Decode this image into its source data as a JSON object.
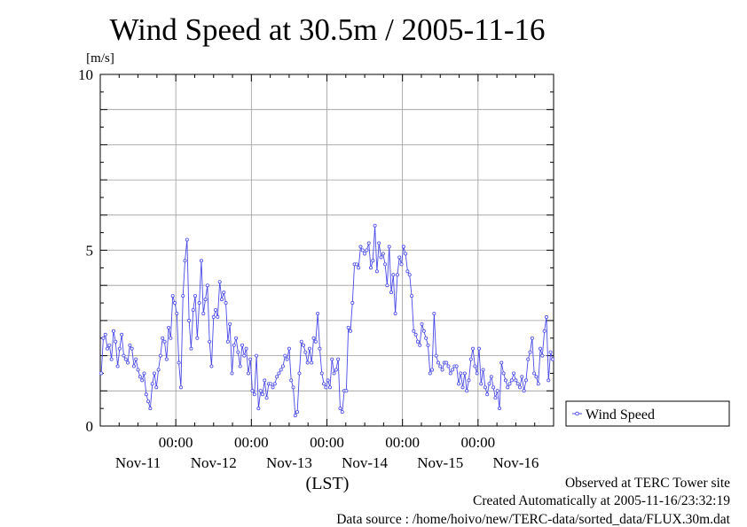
{
  "chart_data": {
    "type": "line",
    "title": "Wind Speed at 30.5m / 2005-11-16",
    "ylabel": "[m/s]",
    "xlabel": "(LST)",
    "ylim": [
      0,
      10
    ],
    "yticks": [
      "0",
      "5",
      "10"
    ],
    "xlim": [
      0,
      6
    ],
    "time_tick_label": "00:00",
    "day_labels": [
      "Nov-11",
      "Nov-12",
      "Nov-13",
      "Nov-14",
      "Nov-15",
      "Nov-16"
    ],
    "grid": true,
    "legend_position": "right",
    "series": [
      {
        "name": "Wind Speed",
        "color": "#4a4ae6",
        "values": [
          1.5,
          2.5,
          2.6,
          2.2,
          2.3,
          1.9,
          2.7,
          2.4,
          1.7,
          2.2,
          2.6,
          2.0,
          1.9,
          1.8,
          2.3,
          2.2,
          1.7,
          1.9,
          1.6,
          1.4,
          1.3,
          1.5,
          0.9,
          0.7,
          0.5,
          1.2,
          1.5,
          1.1,
          1.6,
          2.0,
          2.5,
          2.4,
          1.9,
          2.8,
          2.5,
          3.7,
          3.5,
          3.2,
          1.8,
          1.1,
          3.7,
          4.7,
          5.3,
          3.0,
          2.2,
          3.3,
          3.7,
          2.5,
          3.5,
          4.7,
          3.2,
          3.6,
          4.0,
          2.4,
          1.7,
          3.1,
          3.3,
          3.1,
          4.1,
          3.6,
          3.8,
          3.5,
          2.4,
          2.9,
          1.5,
          2.3,
          2.5,
          2.1,
          1.7,
          2.3,
          2.0,
          2.2,
          1.5,
          1.9,
          1.0,
          0.9,
          2.0,
          0.5,
          1.0,
          0.9,
          1.3,
          0.8,
          1.2,
          1.2,
          1.1,
          1.2,
          1.4,
          1.5,
          1.6,
          1.7,
          2.0,
          1.9,
          2.2,
          1.3,
          1.1,
          0.3,
          0.4,
          1.5,
          2.4,
          2.3,
          2.1,
          1.8,
          2.2,
          1.8,
          2.5,
          2.4,
          3.2,
          2.2,
          1.5,
          1.2,
          1.1,
          1.3,
          1.1,
          1.9,
          1.5,
          1.6,
          1.9,
          0.5,
          0.4,
          1.0,
          1.0,
          2.8,
          2.7,
          3.5,
          4.6,
          4.6,
          4.5,
          5.1,
          5.0,
          4.9,
          5.0,
          5.2,
          4.5,
          4.7,
          5.7,
          4.4,
          5.2,
          4.8,
          4.9,
          4.6,
          4.0,
          5.1,
          3.8,
          4.3,
          3.2,
          4.3,
          4.8,
          4.6,
          5.1,
          4.9,
          4.4,
          4.3,
          3.7,
          2.7,
          2.6,
          2.4,
          2.3,
          2.9,
          2.7,
          2.5,
          2.3,
          1.5,
          1.6,
          3.2,
          2.0,
          1.8,
          1.7,
          1.6,
          1.8,
          1.8,
          1.7,
          1.5,
          1.6,
          1.7,
          1.7,
          1.2,
          1.5,
          1.1,
          1.5,
          1.0,
          1.3,
          1.9,
          2.2,
          1.7,
          1.5,
          2.2,
          1.2,
          1.6,
          1.1,
          0.9,
          1.2,
          1.4,
          1.1,
          0.8,
          1.0,
          0.5,
          1.8,
          1.5,
          1.3,
          1.1,
          1.2,
          1.3,
          1.5,
          1.3,
          1.2,
          1.1,
          1.4,
          1.0,
          1.3,
          1.9,
          2.1,
          2.5,
          1.5,
          1.4,
          1.2,
          2.2,
          2.0,
          2.7,
          3.1,
          1.3,
          2.1,
          1.9
        ]
      }
    ]
  },
  "footer": {
    "observed": "Observed at TERC Tower site",
    "created": "Created Automatically at 2005-11-16/23:32:19",
    "source": "Data source : /home/hoivo/new/TERC-data/sorted_data/FLUX.30m.dat"
  }
}
